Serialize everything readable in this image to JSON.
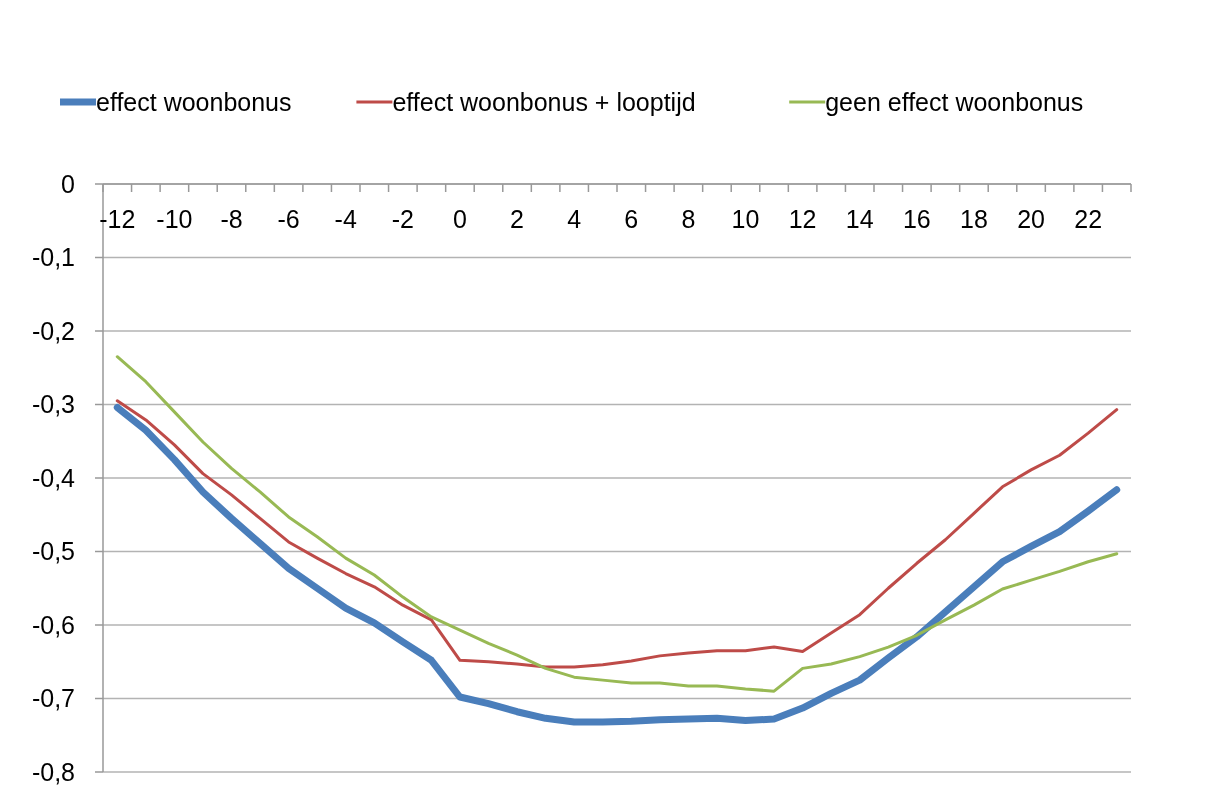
{
  "chart_data": {
    "type": "line",
    "categories": [
      "-12",
      null,
      "-10",
      null,
      "-8",
      null,
      "-6",
      null,
      "-4",
      null,
      "-2",
      null,
      "0",
      null,
      "2",
      null,
      "4",
      null,
      "6",
      null,
      "8",
      null,
      "10",
      null,
      "12",
      null,
      "14",
      null,
      "16",
      null,
      "18",
      null,
      "20",
      null,
      "22",
      null
    ],
    "series": [
      {
        "name": "effect woonbonus",
        "color": "#4a7ebb",
        "values": [
          -0.304,
          -0.335,
          -0.375,
          -0.419,
          -0.455,
          -0.489,
          -0.523,
          -0.55,
          -0.577,
          -0.597,
          -0.623,
          -0.648,
          -0.698,
          -0.707,
          -0.718,
          -0.727,
          -0.732,
          -0.732,
          -0.731,
          -0.729,
          -0.728,
          -0.727,
          -0.73,
          -0.728,
          -0.713,
          -0.693,
          -0.675,
          -0.645,
          -0.616,
          -0.582,
          -0.548,
          -0.514,
          -0.493,
          -0.473,
          -0.445,
          -0.416
        ]
      },
      {
        "name": "effect woonbonus + looptijd",
        "color": "#be4b48",
        "values": [
          -0.295,
          -0.321,
          -0.355,
          -0.394,
          -0.423,
          -0.455,
          -0.487,
          -0.509,
          -0.53,
          -0.548,
          -0.573,
          -0.593,
          -0.648,
          -0.65,
          -0.653,
          -0.657,
          -0.657,
          -0.654,
          -0.649,
          -0.642,
          -0.638,
          -0.635,
          -0.635,
          -0.63,
          -0.636,
          -0.611,
          -0.586,
          -0.55,
          -0.516,
          -0.484,
          -0.448,
          -0.412,
          -0.389,
          -0.369,
          -0.339,
          -0.307
        ]
      },
      {
        "name": "geen effect woonbonus",
        "color": "#98b954",
        "values": [
          -0.235,
          -0.269,
          -0.31,
          -0.351,
          -0.387,
          -0.419,
          -0.453,
          -0.48,
          -0.509,
          -0.532,
          -0.562,
          -0.589,
          -0.607,
          -0.625,
          -0.641,
          -0.659,
          -0.671,
          -0.675,
          -0.679,
          -0.679,
          -0.683,
          -0.683,
          -0.687,
          -0.69,
          -0.659,
          -0.653,
          -0.643,
          -0.63,
          -0.614,
          -0.593,
          -0.573,
          -0.551,
          -0.539,
          -0.527,
          -0.514,
          -0.503
        ]
      }
    ],
    "ylim": [
      -0.8,
      0
    ],
    "yticks": [
      {
        "value": 0,
        "label": "0"
      },
      {
        "value": -0.1,
        "label": "-0,1"
      },
      {
        "value": -0.2,
        "label": "-0,2"
      },
      {
        "value": -0.3,
        "label": "-0,3"
      },
      {
        "value": -0.4,
        "label": "-0,4"
      },
      {
        "value": -0.5,
        "label": "-0,5"
      },
      {
        "value": -0.6,
        "label": "-0,6"
      },
      {
        "value": -0.7,
        "label": "-0,7"
      },
      {
        "value": -0.8,
        "label": "-0,8"
      }
    ],
    "grid": "y",
    "legend": "top",
    "marker": "none",
    "line_style": "solid"
  }
}
